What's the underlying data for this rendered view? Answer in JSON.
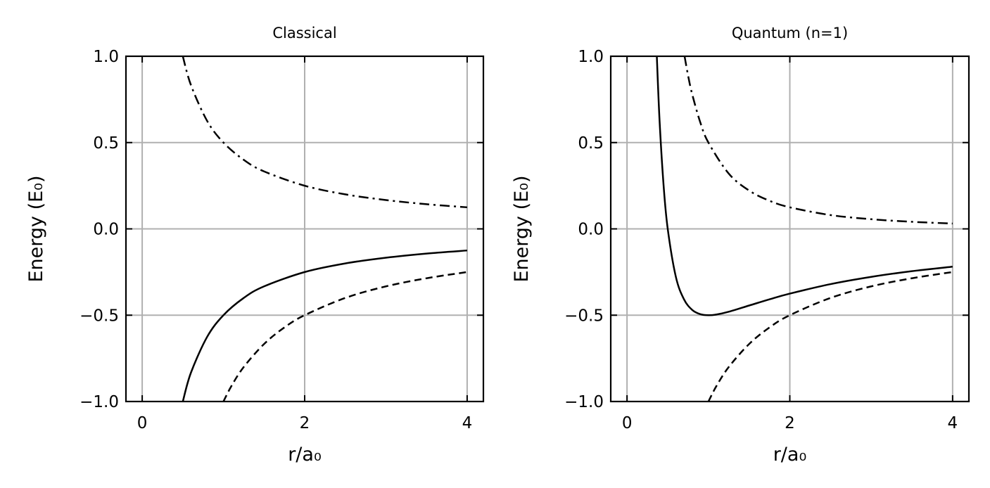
{
  "chart_data": [
    {
      "type": "line",
      "title": "Classical",
      "xlabel": "r/a₀",
      "ylabel": "Energy (E₀)",
      "xlim": [
        -0.2,
        4.2
      ],
      "ylim": [
        -1.0,
        1.0
      ],
      "xticks": [
        0,
        2,
        4
      ],
      "xtick_labels": [
        "0",
        "2",
        "4"
      ],
      "yticks": [
        -1.0,
        -0.5,
        0.0,
        0.5,
        1.0
      ],
      "ytick_labels": [
        "−1.0",
        "−0.5",
        "0.0",
        "0.5",
        "1.0"
      ],
      "grid": true,
      "series": [
        {
          "style": "solid",
          "x": [
            0.5,
            0.6,
            0.8,
            1.0,
            1.25,
            1.5,
            2.0,
            2.5,
            3.0,
            3.5,
            4.0
          ],
          "y": [
            -1.0,
            -0.833,
            -0.625,
            -0.5,
            -0.4,
            -0.333,
            -0.25,
            -0.2,
            -0.167,
            -0.143,
            -0.125
          ]
        },
        {
          "style": "dashed",
          "x": [
            1.0,
            1.1,
            1.25,
            1.5,
            1.75,
            2.0,
            2.5,
            3.0,
            3.5,
            4.0
          ],
          "y": [
            -1.0,
            -0.909,
            -0.8,
            -0.667,
            -0.571,
            -0.5,
            -0.4,
            -0.333,
            -0.286,
            -0.25
          ]
        },
        {
          "style": "dashdot",
          "x": [
            0.5,
            0.6,
            0.8,
            1.0,
            1.25,
            1.5,
            2.0,
            2.5,
            3.0,
            3.5,
            4.0
          ],
          "y": [
            1.0,
            0.833,
            0.625,
            0.5,
            0.4,
            0.333,
            0.25,
            0.2,
            0.167,
            0.143,
            0.125
          ]
        }
      ]
    },
    {
      "type": "line",
      "title": "Quantum (n=1)",
      "xlabel": "r/a₀",
      "ylabel": "Energy (E₀)",
      "xlim": [
        -0.2,
        4.2
      ],
      "ylim": [
        -1.0,
        1.0
      ],
      "xticks": [
        0,
        2,
        4
      ],
      "xtick_labels": [
        "0",
        "2",
        "4"
      ],
      "yticks": [
        -1.0,
        -0.5,
        0.0,
        0.5,
        1.0
      ],
      "ytick_labels": [
        "−1.0",
        "−0.5",
        "0.0",
        "0.5",
        "1.0"
      ],
      "grid": true,
      "series": [
        {
          "style": "solid",
          "x": [
            0.366,
            0.4,
            0.45,
            0.5,
            0.6,
            0.7,
            0.8,
            0.9,
            1.0,
            1.1,
            1.25,
            1.5,
            1.75,
            2.0,
            2.5,
            3.0,
            3.5,
            4.0
          ],
          "y": [
            1.0,
            0.625,
            0.247,
            0.0,
            -0.278,
            -0.408,
            -0.469,
            -0.494,
            -0.5,
            -0.496,
            -0.48,
            -0.444,
            -0.408,
            -0.375,
            -0.32,
            -0.278,
            -0.245,
            -0.219
          ]
        },
        {
          "style": "dashed",
          "x": [
            1.0,
            1.1,
            1.25,
            1.5,
            1.75,
            2.0,
            2.5,
            3.0,
            3.5,
            4.0
          ],
          "y": [
            -1.0,
            -0.909,
            -0.8,
            -0.667,
            -0.571,
            -0.5,
            -0.4,
            -0.333,
            -0.286,
            -0.25
          ]
        },
        {
          "style": "dashdot",
          "x": [
            0.707,
            0.75,
            0.8,
            0.9,
            1.0,
            1.25,
            1.5,
            1.75,
            2.0,
            2.5,
            3.0,
            3.5,
            4.0
          ],
          "y": [
            1.0,
            0.889,
            0.781,
            0.617,
            0.5,
            0.32,
            0.222,
            0.163,
            0.125,
            0.08,
            0.056,
            0.041,
            0.031
          ]
        }
      ]
    }
  ]
}
